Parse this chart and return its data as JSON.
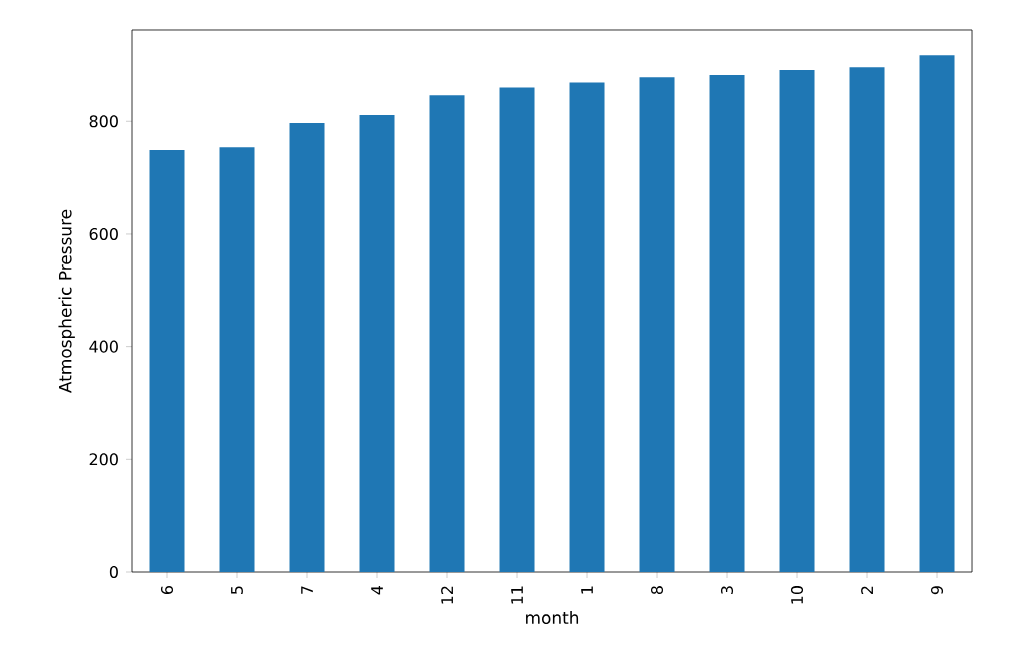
{
  "chart_data": {
    "type": "bar",
    "xlabel": "month",
    "ylabel": "Atmospheric Pressure",
    "categories": [
      "6",
      "5",
      "7",
      "4",
      "12",
      "11",
      "1",
      "8",
      "3",
      "10",
      "2",
      "9"
    ],
    "values": [
      749,
      754,
      797,
      811,
      846,
      860,
      869,
      878,
      882,
      891,
      896,
      917
    ],
    "color": "#1f77b4",
    "ylim": [
      0,
      962
    ],
    "yticks": [
      0,
      200,
      400,
      600,
      800
    ]
  }
}
